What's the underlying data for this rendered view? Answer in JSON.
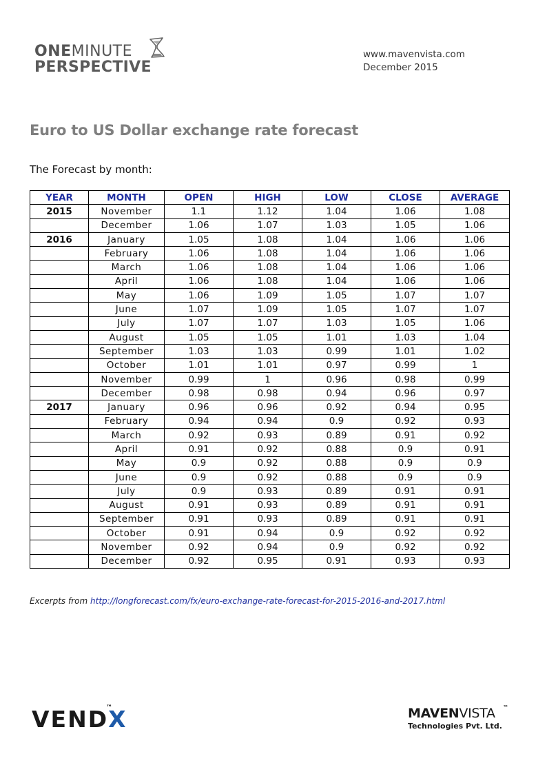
{
  "header": {
    "logo_word1": "ONE",
    "logo_word2": "MINUTE",
    "logo_word3": "PERSPECTIVE",
    "website": "www.mavenvista.com",
    "date": "December 2015"
  },
  "title": "Euro to US Dollar exchange rate forecast",
  "intro": "The Forecast by month:",
  "table": {
    "headers": [
      "YEAR",
      "MONTH",
      "OPEN",
      "HIGH",
      "LOW",
      "CLOSE",
      "AVERAGE"
    ],
    "rows": [
      [
        "2015",
        "November",
        "1.1",
        "1.12",
        "1.04",
        "1.06",
        "1.08"
      ],
      [
        "",
        "December",
        "1.06",
        "1.07",
        "1.03",
        "1.05",
        "1.06"
      ],
      [
        "2016",
        "January",
        "1.05",
        "1.08",
        "1.04",
        "1.06",
        "1.06"
      ],
      [
        "",
        "February",
        "1.06",
        "1.08",
        "1.04",
        "1.06",
        "1.06"
      ],
      [
        "",
        "March",
        "1.06",
        "1.08",
        "1.04",
        "1.06",
        "1.06"
      ],
      [
        "",
        "April",
        "1.06",
        "1.08",
        "1.04",
        "1.06",
        "1.06"
      ],
      [
        "",
        "May",
        "1.06",
        "1.09",
        "1.05",
        "1.07",
        "1.07"
      ],
      [
        "",
        "June",
        "1.07",
        "1.09",
        "1.05",
        "1.07",
        "1.07"
      ],
      [
        "",
        "July",
        "1.07",
        "1.07",
        "1.03",
        "1.05",
        "1.06"
      ],
      [
        "",
        "August",
        "1.05",
        "1.05",
        "1.01",
        "1.03",
        "1.04"
      ],
      [
        "",
        "September",
        "1.03",
        "1.03",
        "0.99",
        "1.01",
        "1.02"
      ],
      [
        "",
        "October",
        "1.01",
        "1.01",
        "0.97",
        "0.99",
        "1"
      ],
      [
        "",
        "November",
        "0.99",
        "1",
        "0.96",
        "0.98",
        "0.99"
      ],
      [
        "",
        "December",
        "0.98",
        "0.98",
        "0.94",
        "0.96",
        "0.97"
      ],
      [
        "2017",
        "January",
        "0.96",
        "0.96",
        "0.92",
        "0.94",
        "0.95"
      ],
      [
        "",
        "February",
        "0.94",
        "0.94",
        "0.9",
        "0.92",
        "0.93"
      ],
      [
        "",
        "March",
        "0.92",
        "0.93",
        "0.89",
        "0.91",
        "0.92"
      ],
      [
        "",
        "April",
        "0.91",
        "0.92",
        "0.88",
        "0.9",
        "0.91"
      ],
      [
        "",
        "May",
        "0.9",
        "0.92",
        "0.88",
        "0.9",
        "0.9"
      ],
      [
        "",
        "June",
        "0.9",
        "0.92",
        "0.88",
        "0.9",
        "0.9"
      ],
      [
        "",
        "July",
        "0.9",
        "0.93",
        "0.89",
        "0.91",
        "0.91"
      ],
      [
        "",
        "August",
        "0.91",
        "0.93",
        "0.89",
        "0.91",
        "0.91"
      ],
      [
        "",
        "September",
        "0.91",
        "0.93",
        "0.89",
        "0.91",
        "0.91"
      ],
      [
        "",
        "October",
        "0.91",
        "0.94",
        "0.9",
        "0.92",
        "0.92"
      ],
      [
        "",
        "November",
        "0.92",
        "0.94",
        "0.9",
        "0.92",
        "0.92"
      ],
      [
        "",
        "December",
        "0.92",
        "0.95",
        "0.91",
        "0.93",
        "0.93"
      ]
    ]
  },
  "source": {
    "prefix": "Excerpts from",
    "link": "http://longforecast.com/fx/euro-exchange-rate-forecast-for-2015-2016-and-2017.html"
  },
  "footer": {
    "vendx_text": "VEND",
    "vendx_x": "X",
    "vendx_tm": "™",
    "mavenvista_bold": "MAVEN",
    "mavenvista_light": "VISTA",
    "mavenvista_tm": "™",
    "mavenvista_sub": "Technologies Pvt. Ltd."
  },
  "colors": {
    "header_text": "#1f2fa0",
    "title": "#7f7f7f",
    "link": "#1f2fa0",
    "vendx_accent": "#1e5aa8"
  }
}
